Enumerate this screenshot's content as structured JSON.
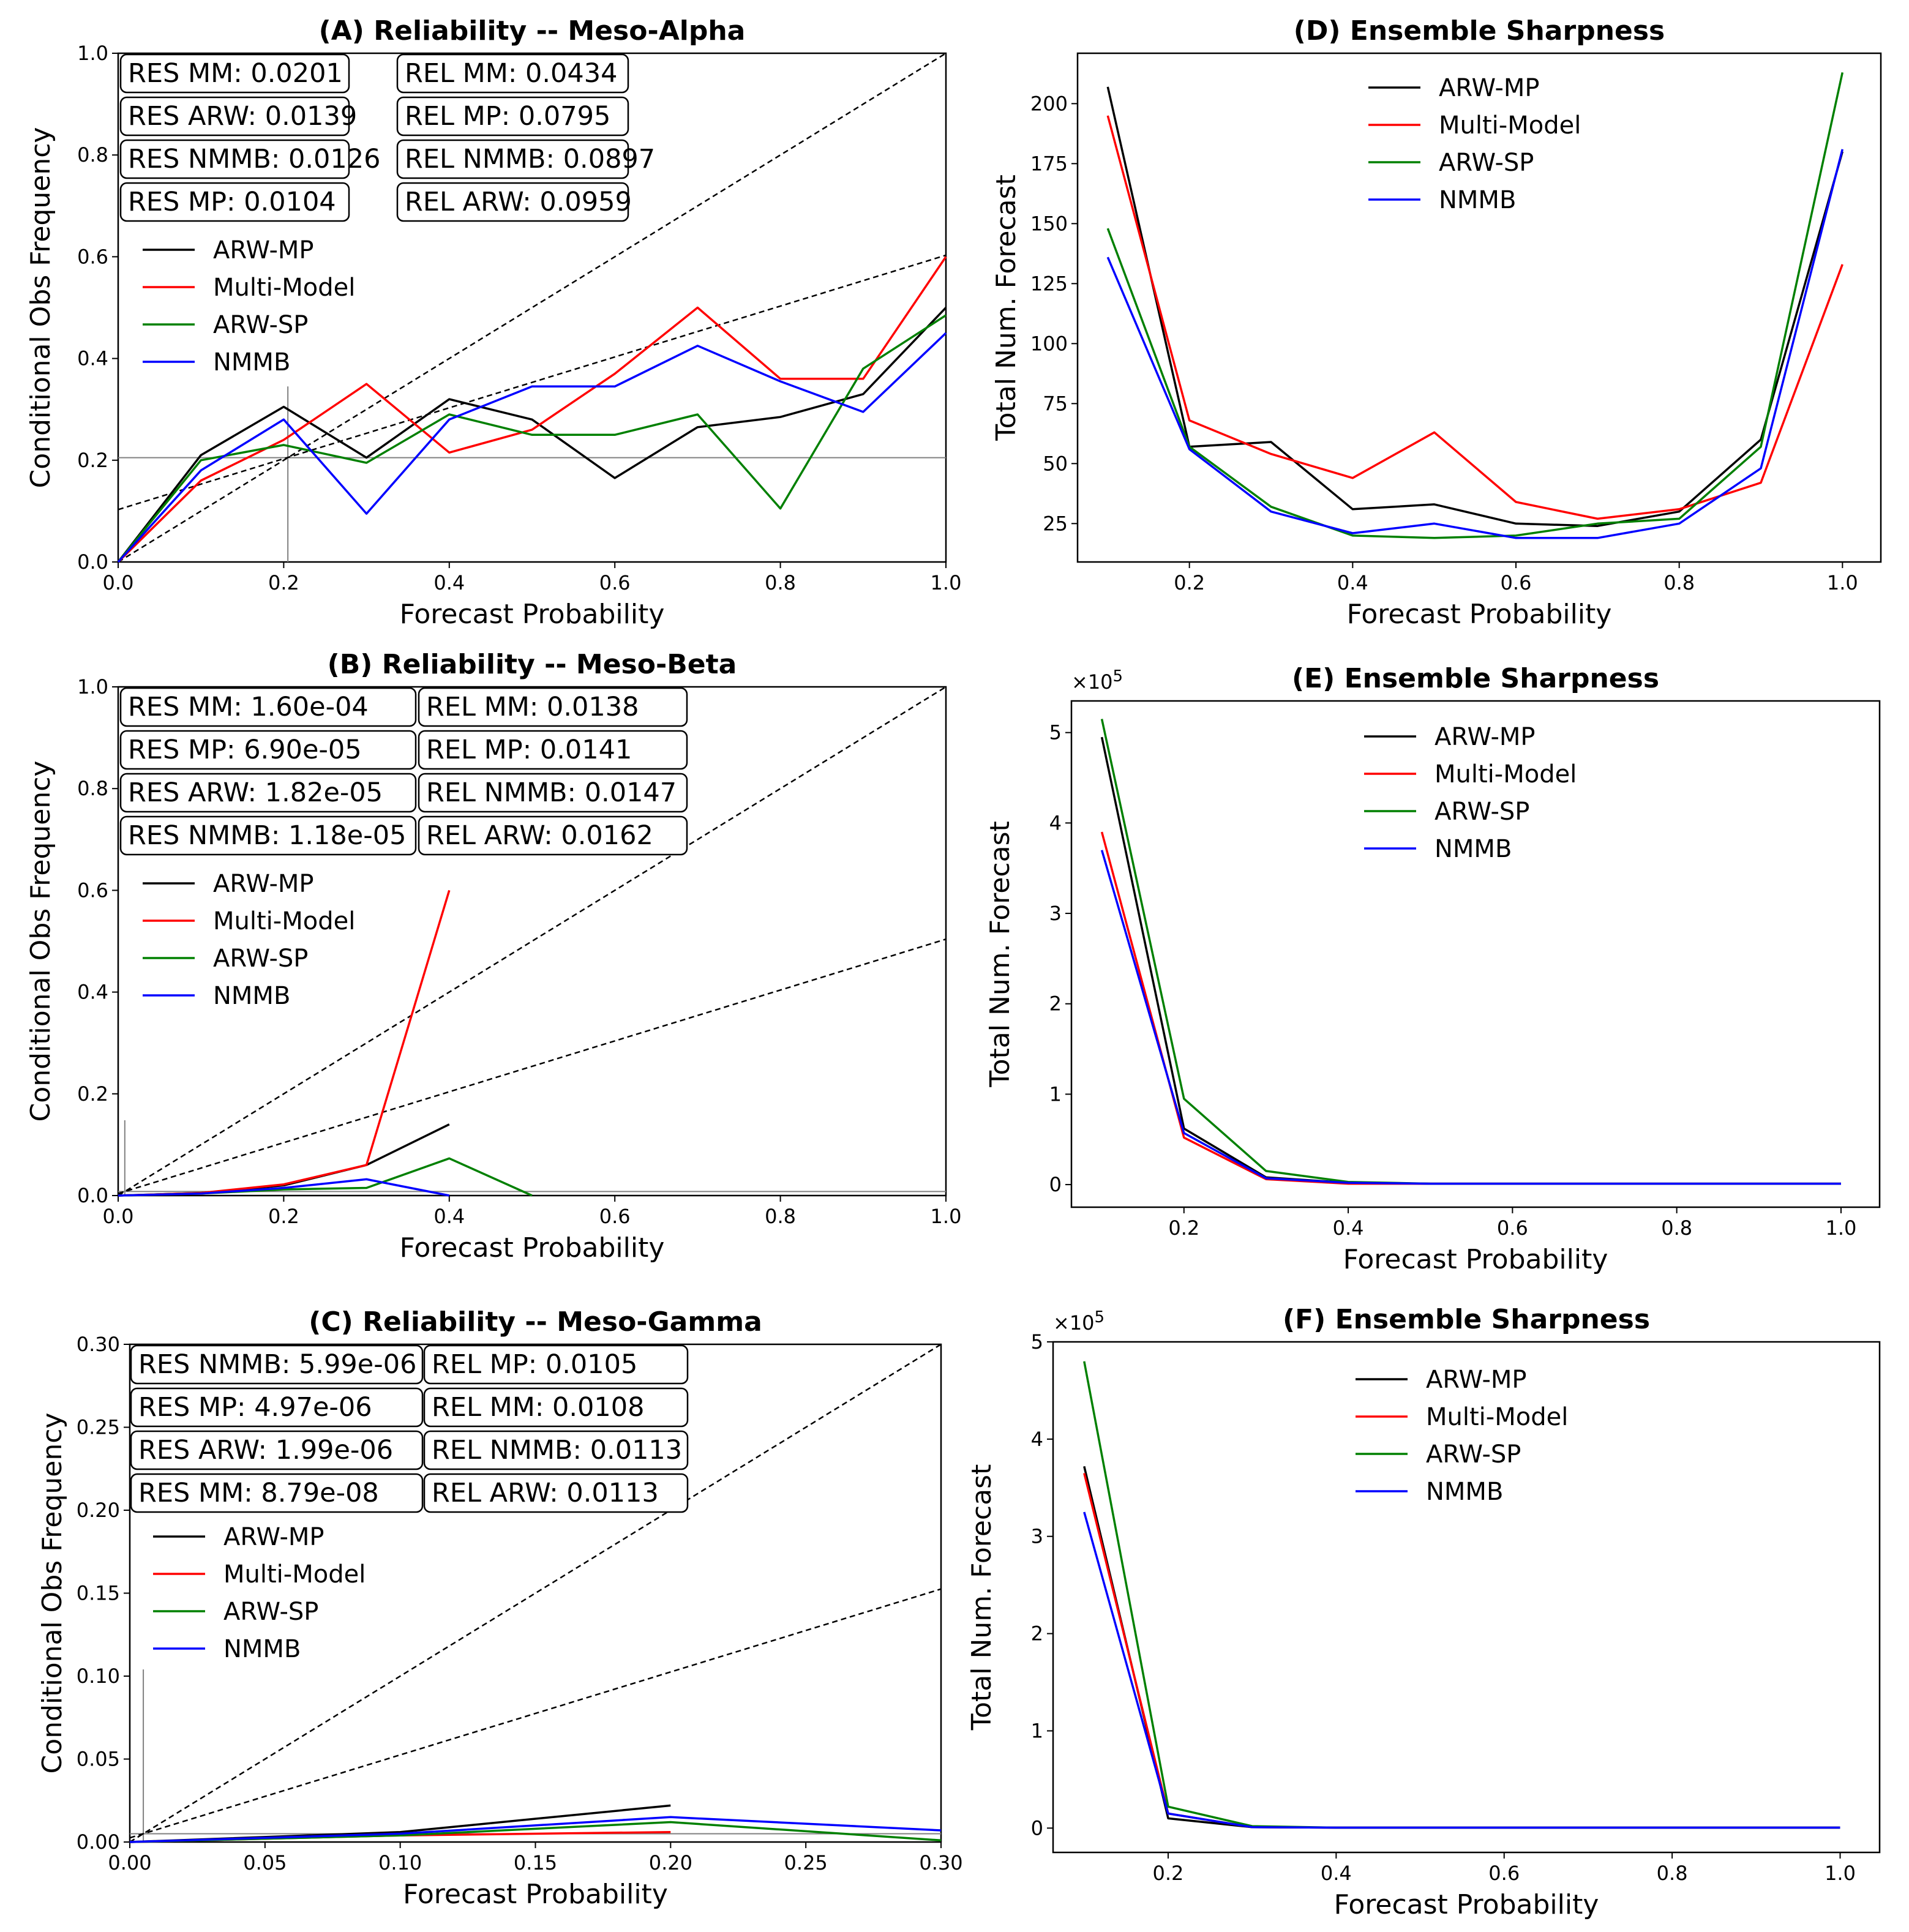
{
  "colors": {
    "ARW-MP": "#000000",
    "Multi-Model": "#ff0000",
    "ARW-SP": "#008000",
    "NMMB": "#0000ff",
    "reference": "#000000",
    "climo": "#808080"
  },
  "chart_data": [
    {
      "panel": "A",
      "type": "line",
      "title": "(A) Reliability -- Meso-Alpha",
      "xlabel": "Forecast Probability",
      "ylabel": "Conditional Obs Frequency",
      "xlim": [
        0,
        1
      ],
      "ylim": [
        0,
        1
      ],
      "xticks": [
        "0.0",
        "0.2",
        "0.4",
        "0.6",
        "0.8",
        "1.0"
      ],
      "yticks": [
        "0.0",
        "0.2",
        "0.4",
        "0.6",
        "0.8",
        "1.0"
      ],
      "climatology": 0.205,
      "no_skill": [
        [
          0,
          0.103
        ],
        [
          1,
          0.603
        ]
      ],
      "stats_res": [
        "RES MM: 0.0201",
        "RES ARW: 0.0139",
        "RES NMMB: 0.0126",
        "RES MP: 0.0104"
      ],
      "stats_rel": [
        "REL MM: 0.0434",
        "REL MP: 0.0795",
        "REL NMMB: 0.0897",
        "REL ARW: 0.0959"
      ],
      "legend": [
        "ARW-MP",
        "Multi-Model",
        "ARW-SP",
        "NMMB"
      ],
      "x": [
        0,
        0.1,
        0.2,
        0.3,
        0.4,
        0.5,
        0.6,
        0.7,
        0.8,
        0.9,
        1.0
      ],
      "series": [
        {
          "name": "ARW-MP",
          "values": [
            0,
            0.21,
            0.305,
            0.205,
            0.32,
            0.28,
            0.165,
            0.265,
            0.285,
            0.33,
            0.5
          ]
        },
        {
          "name": "Multi-Model",
          "values": [
            0,
            0.16,
            0.24,
            0.35,
            0.215,
            0.26,
            0.37,
            0.5,
            0.36,
            0.36,
            0.6
          ]
        },
        {
          "name": "ARW-SP",
          "values": [
            0,
            0.2,
            0.23,
            0.195,
            0.29,
            0.25,
            0.25,
            0.29,
            0.105,
            0.38,
            0.485
          ]
        },
        {
          "name": "NMMB",
          "values": [
            0,
            0.18,
            0.28,
            0.095,
            0.28,
            0.345,
            0.345,
            0.425,
            0.355,
            0.295,
            0.45
          ]
        }
      ]
    },
    {
      "panel": "B",
      "type": "line",
      "title": "(B) Reliability -- Meso-Beta",
      "xlabel": "Forecast Probability",
      "ylabel": "Conditional Obs Frequency",
      "xlim": [
        0,
        1
      ],
      "ylim": [
        0,
        1
      ],
      "xticks": [
        "0.0",
        "0.2",
        "0.4",
        "0.6",
        "0.8",
        "1.0"
      ],
      "yticks": [
        "0.0",
        "0.2",
        "0.4",
        "0.6",
        "0.8",
        "1.0"
      ],
      "climatology": 0.008,
      "no_skill": [
        [
          0,
          0.004
        ],
        [
          1,
          0.504
        ]
      ],
      "stats_res": [
        "RES MM: 1.60e-04",
        "RES MP: 6.90e-05",
        "RES ARW: 1.82e-05",
        "RES NMMB: 1.18e-05"
      ],
      "stats_rel": [
        "REL MM: 0.0138",
        "REL MP: 0.0141",
        "REL NMMB: 0.0147",
        "REL ARW: 0.0162"
      ],
      "legend": [
        "ARW-MP",
        "Multi-Model",
        "ARW-SP",
        "NMMB"
      ],
      "series": [
        {
          "name": "ARW-MP",
          "x": [
            0,
            0.1,
            0.2,
            0.3,
            0.4
          ],
          "values": [
            0,
            0.005,
            0.02,
            0.06,
            0.14
          ]
        },
        {
          "name": "Multi-Model",
          "x": [
            0,
            0.1,
            0.2,
            0.3,
            0.4
          ],
          "values": [
            0,
            0.005,
            0.022,
            0.06,
            0.6
          ]
        },
        {
          "name": "ARW-SP",
          "x": [
            0,
            0.1,
            0.2,
            0.3,
            0.4,
            0.5
          ],
          "values": [
            0,
            0.004,
            0.012,
            0.015,
            0.073,
            0
          ]
        },
        {
          "name": "NMMB",
          "x": [
            0,
            0.1,
            0.2,
            0.3,
            0.4
          ],
          "values": [
            0,
            0.004,
            0.015,
            0.032,
            0
          ]
        }
      ]
    },
    {
      "panel": "C",
      "type": "line",
      "title": "(C) Reliability -- Meso-Gamma",
      "xlabel": "Forecast Probability",
      "ylabel": "Conditional Obs Frequency",
      "xlim": [
        0,
        0.3
      ],
      "ylim": [
        0,
        0.3
      ],
      "xticks": [
        "0.00",
        "0.05",
        "0.10",
        "0.15",
        "0.20",
        "0.25",
        "0.30"
      ],
      "yticks": [
        "0.00",
        "0.05",
        "0.10",
        "0.15",
        "0.20",
        "0.25",
        "0.30"
      ],
      "climatology": 0.005,
      "climo_mark": {
        "x": 0.005,
        "y": 0.104
      },
      "no_skill": [
        [
          0,
          0.0025
        ],
        [
          0.3,
          0.1525
        ]
      ],
      "stats_res": [
        "RES NMMB: 5.99e-06",
        "RES MP: 4.97e-06",
        "RES ARW: 1.99e-06",
        "RES MM: 8.79e-08"
      ],
      "stats_rel": [
        "REL MP: 0.0105",
        "REL MM: 0.0108",
        "REL NMMB: 0.0113",
        "REL ARW: 0.0113"
      ],
      "legend": [
        "ARW-MP",
        "Multi-Model",
        "ARW-SP",
        "NMMB"
      ],
      "series": [
        {
          "name": "ARW-MP",
          "x": [
            0,
            0.1,
            0.2
          ],
          "values": [
            0,
            0.006,
            0.022
          ]
        },
        {
          "name": "Multi-Model",
          "x": [
            0,
            0.1,
            0.2
          ],
          "values": [
            0,
            0.004,
            0.006
          ]
        },
        {
          "name": "ARW-SP",
          "x": [
            0,
            0.1,
            0.2,
            0.3
          ],
          "values": [
            0,
            0.004,
            0.012,
            0.001
          ]
        },
        {
          "name": "NMMB",
          "x": [
            0,
            0.1,
            0.2,
            0.3
          ],
          "values": [
            0,
            0.005,
            0.015,
            0.007
          ]
        }
      ]
    },
    {
      "panel": "D",
      "type": "line",
      "title": "(D) Ensemble Sharpness",
      "xlabel": "Forecast Probability",
      "ylabel": "Total Num. Forecast",
      "xlim": [
        0.063,
        1.047
      ],
      "ylim": [
        9,
        221
      ],
      "xtick_values": [
        0.2,
        0.4,
        0.6,
        0.8,
        1.0
      ],
      "xticks": [
        "0.2",
        "0.4",
        "0.6",
        "0.8",
        "1.0"
      ],
      "ytick_values": [
        25,
        50,
        75,
        100,
        125,
        150,
        175,
        200
      ],
      "yticks": [
        "25",
        "50",
        "75",
        "100",
        "125",
        "150",
        "175",
        "200"
      ],
      "legend": [
        "ARW-MP",
        "Multi-Model",
        "ARW-SP",
        "NMMB"
      ],
      "x": [
        0.1,
        0.2,
        0.3,
        0.4,
        0.5,
        0.6,
        0.7,
        0.8,
        0.9,
        1.0
      ],
      "series": [
        {
          "name": "ARW-MP",
          "values": [
            207,
            57,
            59,
            31,
            33,
            25,
            24,
            30,
            60,
            180
          ]
        },
        {
          "name": "Multi-Model",
          "values": [
            195,
            68,
            54,
            44,
            63,
            34,
            27,
            31,
            42,
            133
          ]
        },
        {
          "name": "ARW-SP",
          "values": [
            148,
            57,
            32,
            20,
            19,
            20,
            25,
            27,
            57,
            213
          ]
        },
        {
          "name": "NMMB",
          "values": [
            136,
            56,
            30,
            21,
            25,
            19,
            19,
            25,
            48,
            181
          ]
        }
      ]
    },
    {
      "panel": "E",
      "type": "line",
      "title": "(E) Ensemble Sharpness",
      "xlabel": "Forecast Probability",
      "ylabel": "Total Num. Forecast",
      "scale_label": "×10",
      "scale_exponent": "5",
      "xlim": [
        0.063,
        1.047
      ],
      "ylim": [
        -0.25,
        5.35
      ],
      "xtick_values": [
        0.2,
        0.4,
        0.6,
        0.8,
        1.0
      ],
      "xticks": [
        "0.2",
        "0.4",
        "0.6",
        "0.8",
        "1.0"
      ],
      "ytick_values": [
        0,
        1,
        2,
        3,
        4,
        5
      ],
      "yticks": [
        "0",
        "1",
        "2",
        "3",
        "4",
        "5"
      ],
      "legend": [
        "ARW-MP",
        "Multi-Model",
        "ARW-SP",
        "NMMB"
      ],
      "x": [
        0.1,
        0.2,
        0.3,
        0.4,
        0.5,
        0.6,
        0.7,
        0.8,
        0.9,
        1.0
      ],
      "series": [
        {
          "name": "ARW-MP",
          "values": [
            4.95,
            0.62,
            0.08,
            0.02,
            0.01,
            0.01,
            0.01,
            0.01,
            0.01,
            0.01
          ]
        },
        {
          "name": "Multi-Model",
          "values": [
            3.9,
            0.52,
            0.06,
            0.01,
            0.01,
            0.01,
            0.01,
            0.01,
            0.01,
            0.01
          ]
        },
        {
          "name": "ARW-SP",
          "values": [
            5.15,
            0.95,
            0.15,
            0.03,
            0.01,
            0.01,
            0.01,
            0.01,
            0.01,
            0.01
          ]
        },
        {
          "name": "NMMB",
          "values": [
            3.7,
            0.57,
            0.07,
            0.02,
            0.01,
            0.01,
            0.01,
            0.01,
            0.01,
            0.01
          ]
        }
      ]
    },
    {
      "panel": "F",
      "type": "line",
      "title": "(F) Ensemble Sharpness",
      "xlabel": "Forecast Probability",
      "ylabel": "Total Num. Forecast",
      "scale_label": "×10",
      "scale_exponent": "5",
      "xlim": [
        0.063,
        1.047
      ],
      "ylim": [
        -0.25,
        5.0
      ],
      "xtick_values": [
        0.2,
        0.4,
        0.6,
        0.8,
        1.0
      ],
      "xticks": [
        "0.2",
        "0.4",
        "0.6",
        "0.8",
        "1.0"
      ],
      "ytick_values": [
        0,
        1,
        2,
        3,
        4,
        5
      ],
      "yticks": [
        "0",
        "1",
        "2",
        "3",
        "4",
        "5"
      ],
      "legend": [
        "ARW-MP",
        "Multi-Model",
        "ARW-SP",
        "NMMB"
      ],
      "x": [
        0.1,
        0.2,
        0.3,
        0.4,
        0.5,
        0.6,
        0.7,
        0.8,
        0.9,
        1.0
      ],
      "series": [
        {
          "name": "ARW-MP",
          "values": [
            3.72,
            0.1,
            0.01,
            0.005,
            0.005,
            0.005,
            0.005,
            0.005,
            0.005,
            0.005
          ]
        },
        {
          "name": "Multi-Model",
          "values": [
            3.65,
            0.15,
            0.01,
            0.005,
            0.005,
            0.005,
            0.005,
            0.005,
            0.005,
            0.005
          ]
        },
        {
          "name": "ARW-SP",
          "values": [
            4.8,
            0.22,
            0.02,
            0.005,
            0.005,
            0.005,
            0.005,
            0.005,
            0.005,
            0.005
          ]
        },
        {
          "name": "NMMB",
          "values": [
            3.25,
            0.15,
            0.01,
            0.005,
            0.005,
            0.005,
            0.005,
            0.005,
            0.005,
            0.005
          ]
        }
      ]
    }
  ]
}
